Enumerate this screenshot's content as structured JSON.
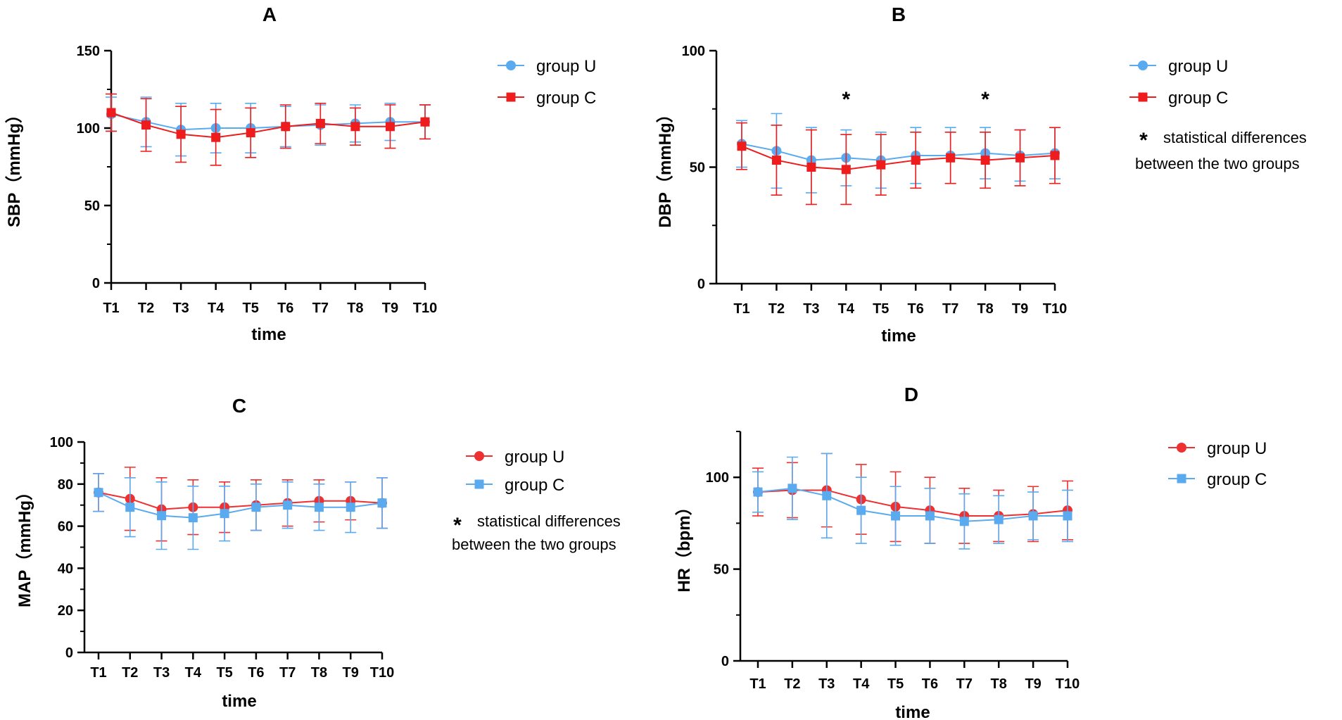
{
  "chart_data": [
    {
      "id": "A",
      "type": "line",
      "title": "A",
      "xlabel": "time",
      "ylabel": "SBP（mmHg）",
      "categories": [
        "T1",
        "T2",
        "T3",
        "T4",
        "T5",
        "T6",
        "T7",
        "T8",
        "T9",
        "T10"
      ],
      "ylim": [
        0,
        150
      ],
      "yticks": [
        0,
        50,
        100,
        150
      ],
      "series": [
        {
          "name": "group U",
          "marker": "circle",
          "color": "#5aaaf0",
          "values": [
            109,
            104,
            99,
            100,
            100,
            101,
            102,
            103,
            104,
            104
          ],
          "errors": [
            11,
            16,
            17,
            16,
            16,
            13,
            13,
            12,
            12,
            11
          ]
        },
        {
          "name": "group C",
          "marker": "square",
          "color": "#ee1c1c",
          "values": [
            110,
            102,
            96,
            94,
            97,
            101,
            103,
            101,
            101,
            104
          ],
          "errors": [
            12,
            17,
            18,
            18,
            16,
            14,
            13,
            12,
            14,
            11
          ]
        }
      ],
      "stars": [],
      "note": null
    },
    {
      "id": "B",
      "type": "line",
      "title": "B",
      "xlabel": "time",
      "ylabel": "DBP（mmHg）",
      "categories": [
        "T1",
        "T2",
        "T3",
        "T4",
        "T5",
        "T6",
        "T7",
        "T8",
        "T9",
        "T10"
      ],
      "ylim": [
        0,
        100
      ],
      "yticks": [
        0,
        50,
        100
      ],
      "series": [
        {
          "name": "group U",
          "marker": "circle",
          "color": "#5aaaf0",
          "values": [
            60,
            57,
            53,
            54,
            53,
            55,
            55,
            56,
            55,
            56
          ],
          "errors": [
            10,
            16,
            14,
            12,
            12,
            12,
            12,
            11,
            11,
            11
          ]
        },
        {
          "name": "group C",
          "marker": "square",
          "color": "#ee1c1c",
          "values": [
            59,
            53,
            50,
            49,
            51,
            53,
            54,
            53,
            54,
            55
          ],
          "errors": [
            10,
            15,
            16,
            15,
            13,
            12,
            11,
            12,
            12,
            12
          ]
        }
      ],
      "stars": [
        "T4",
        "T8"
      ],
      "note": {
        "star": "*",
        "line1": "statistical differences",
        "line2": "between the two groups"
      }
    },
    {
      "id": "C",
      "type": "line",
      "title": "C",
      "xlabel": "time",
      "ylabel": "MAP（mmHg）",
      "categories": [
        "T1",
        "T2",
        "T3",
        "T4",
        "T5",
        "T6",
        "T7",
        "T8",
        "T9",
        "T10"
      ],
      "ylim": [
        0,
        100
      ],
      "yticks": [
        0,
        20,
        40,
        60,
        80,
        100
      ],
      "series": [
        {
          "name": "group U",
          "marker": "circle",
          "color": "#ee3030",
          "values": [
            76,
            73,
            68,
            69,
            69,
            70,
            71,
            72,
            72,
            71
          ],
          "errors": [
            9,
            15,
            15,
            13,
            12,
            12,
            11,
            10,
            9,
            12
          ]
        },
        {
          "name": "group C",
          "marker": "square",
          "color": "#5aaaf0",
          "values": [
            76,
            69,
            65,
            64,
            66,
            69,
            70,
            69,
            69,
            71
          ],
          "errors": [
            9,
            14,
            16,
            15,
            13,
            11,
            11,
            11,
            12,
            12
          ]
        }
      ],
      "stars": [],
      "note": {
        "star": "*",
        "line1": "statistical differences",
        "line2": "between the two groups"
      }
    },
    {
      "id": "D",
      "type": "line",
      "title": "D",
      "xlabel": "time",
      "ylabel": "HR（bpm）",
      "categories": [
        "T1",
        "T2",
        "T3",
        "T4",
        "T5",
        "T6",
        "T7",
        "T8",
        "T9",
        "T10"
      ],
      "ylim": [
        0,
        125
      ],
      "yticks": [
        0,
        50,
        100
      ],
      "series": [
        {
          "name": "group U",
          "marker": "circle",
          "color": "#ee3030",
          "values": [
            92,
            93,
            93,
            88,
            84,
            82,
            79,
            79,
            80,
            82
          ],
          "errors": [
            13,
            15,
            20,
            19,
            19,
            18,
            15,
            14,
            15,
            16
          ]
        },
        {
          "name": "group C",
          "marker": "square",
          "color": "#5aaaf0",
          "values": [
            92,
            94,
            90,
            82,
            79,
            79,
            76,
            77,
            79,
            79
          ],
          "errors": [
            11,
            17,
            23,
            18,
            16,
            15,
            15,
            13,
            13,
            14
          ]
        }
      ],
      "stars": [],
      "note": null
    }
  ]
}
